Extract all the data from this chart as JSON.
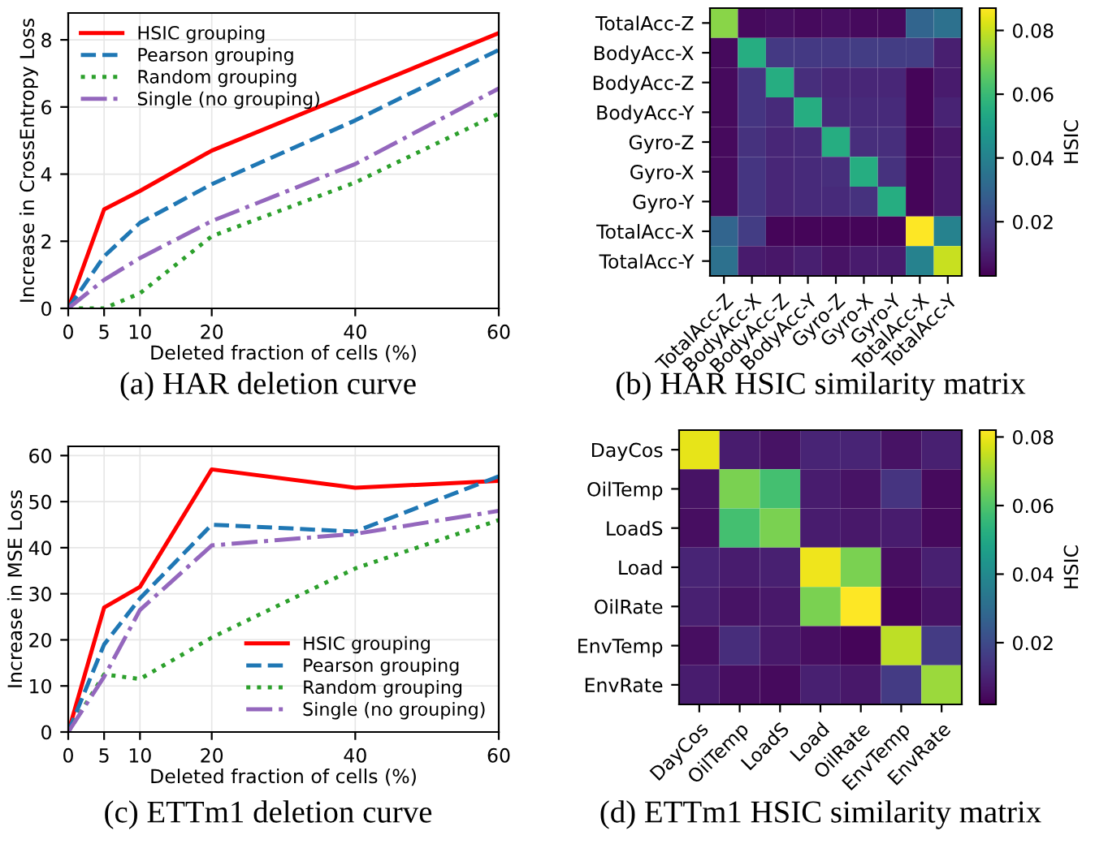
{
  "chart_data": [
    {
      "type": "line",
      "title": "(a) HAR deletion curve",
      "xlabel": "Deleted fraction of cells (%)",
      "ylabel": "Increase in CrossEntropy Loss",
      "x": [
        0,
        5,
        10,
        20,
        40,
        60
      ],
      "xlim": [
        0,
        60
      ],
      "xticks": [
        0,
        5,
        10,
        20,
        40,
        60
      ],
      "ylim": [
        0,
        8.8
      ],
      "yticks": [
        0,
        2,
        4,
        6,
        8
      ],
      "grid": true,
      "legend": "top left",
      "series": [
        {
          "name": "HSIC grouping",
          "color": "#ff0000",
          "line_style": "solid",
          "values": [
            0,
            2.95,
            3.5,
            4.7,
            6.45,
            8.2
          ]
        },
        {
          "name": "Pearson grouping",
          "color": "#1f77b4",
          "line_style": "dashed",
          "values": [
            0,
            1.55,
            2.55,
            3.7,
            5.6,
            7.7
          ]
        },
        {
          "name": "Random grouping",
          "color": "#2ca02c",
          "line_style": "dotted",
          "values": [
            0,
            0,
            0.45,
            2.15,
            3.75,
            5.8
          ]
        },
        {
          "name": "Single (no grouping)",
          "color": "#9467bd",
          "line_style": "dashdot",
          "values": [
            0,
            0.85,
            1.5,
            2.6,
            4.3,
            6.55
          ]
        }
      ]
    },
    {
      "type": "heatmap",
      "title": "(b) HAR HSIC similarity matrix",
      "clabel": "HSIC",
      "clim": [
        0.003,
        0.087
      ],
      "cticks": [
        0.02,
        0.04,
        0.06,
        0.08
      ],
      "categories": [
        "TotalAcc-Z",
        "BodyAcc-X",
        "BodyAcc-Z",
        "BodyAcc-Y",
        "Gyro-Z",
        "Gyro-X",
        "Gyro-Y",
        "TotalAcc-X",
        "TotalAcc-Y"
      ],
      "y_categories": [
        "TotalAcc-Z",
        "BodyAcc-X",
        "BodyAcc-Z",
        "BodyAcc-Y",
        "Gyro-Z",
        "Gyro-X",
        "Gyro-Y",
        "TotalAcc-X",
        "TotalAcc-Y"
      ],
      "cells": [
        [
          0.072,
          0.005,
          0.006,
          0.005,
          0.006,
          0.005,
          0.005,
          0.03,
          0.034
        ],
        [
          0.005,
          0.055,
          0.017,
          0.017,
          0.017,
          0.018,
          0.018,
          0.018,
          0.01
        ],
        [
          0.005,
          0.016,
          0.055,
          0.014,
          0.012,
          0.012,
          0.012,
          0.004,
          0.009
        ],
        [
          0.005,
          0.016,
          0.013,
          0.055,
          0.013,
          0.013,
          0.013,
          0.004,
          0.011
        ],
        [
          0.005,
          0.015,
          0.012,
          0.013,
          0.055,
          0.014,
          0.014,
          0.004,
          0.008
        ],
        [
          0.005,
          0.016,
          0.012,
          0.013,
          0.014,
          0.055,
          0.015,
          0.004,
          0.009
        ],
        [
          0.005,
          0.016,
          0.012,
          0.013,
          0.013,
          0.015,
          0.055,
          0.004,
          0.009
        ],
        [
          0.03,
          0.018,
          0.004,
          0.004,
          0.004,
          0.004,
          0.004,
          0.087,
          0.04
        ],
        [
          0.034,
          0.009,
          0.008,
          0.01,
          0.007,
          0.009,
          0.009,
          0.04,
          0.08
        ]
      ]
    },
    {
      "type": "line",
      "title": "(c) ETTm1 deletion curve",
      "xlabel": "Deleted fraction of cells (%)",
      "ylabel": "Increase in MSE Loss",
      "x": [
        0,
        5,
        10,
        20,
        40,
        60
      ],
      "xlim": [
        0,
        60
      ],
      "xticks": [
        0,
        5,
        10,
        20,
        40,
        60
      ],
      "ylim": [
        0,
        62
      ],
      "yticks": [
        0,
        10,
        20,
        30,
        40,
        50,
        60
      ],
      "grid": true,
      "legend": "bottom right",
      "series": [
        {
          "name": "HSIC grouping",
          "color": "#ff0000",
          "line_style": "solid",
          "values": [
            0,
            27,
            31.5,
            57,
            53,
            54.5
          ]
        },
        {
          "name": "Pearson grouping",
          "color": "#1f77b4",
          "line_style": "dashed",
          "values": [
            0,
            19,
            29,
            45,
            43.5,
            55.5
          ]
        },
        {
          "name": "Random grouping",
          "color": "#2ca02c",
          "line_style": "dotted",
          "values": [
            0,
            12.5,
            11.5,
            20.5,
            35.5,
            46
          ]
        },
        {
          "name": "Single (no grouping)",
          "color": "#9467bd",
          "line_style": "dashdot",
          "values": [
            0,
            12,
            26.5,
            40.5,
            43,
            48
          ]
        }
      ]
    },
    {
      "type": "heatmap",
      "title": "(d) ETTm1 HSIC similarity matrix",
      "clabel": "HSIC",
      "clim": [
        0.002,
        0.082
      ],
      "cticks": [
        0.02,
        0.04,
        0.06,
        0.08
      ],
      "categories": [
        "DayCos",
        "OilTemp",
        "LoadS",
        "Load",
        "OilRate",
        "EnvTemp",
        "EnvRate"
      ],
      "y_categories": [
        "DayCos",
        "OilTemp",
        "LoadS",
        "Load",
        "OilRate",
        "EnvTemp",
        "EnvRate"
      ],
      "cells": [
        [
          0.079,
          0.008,
          0.006,
          0.01,
          0.01,
          0.006,
          0.009
        ],
        [
          0.006,
          0.066,
          0.058,
          0.008,
          0.006,
          0.014,
          0.004
        ],
        [
          0.005,
          0.058,
          0.066,
          0.008,
          0.007,
          0.008,
          0.004
        ],
        [
          0.01,
          0.008,
          0.009,
          0.08,
          0.066,
          0.005,
          0.009
        ],
        [
          0.009,
          0.006,
          0.007,
          0.066,
          0.082,
          0.003,
          0.006
        ],
        [
          0.005,
          0.012,
          0.007,
          0.005,
          0.003,
          0.074,
          0.016
        ],
        [
          0.008,
          0.005,
          0.004,
          0.009,
          0.007,
          0.016,
          0.07
        ]
      ]
    }
  ]
}
